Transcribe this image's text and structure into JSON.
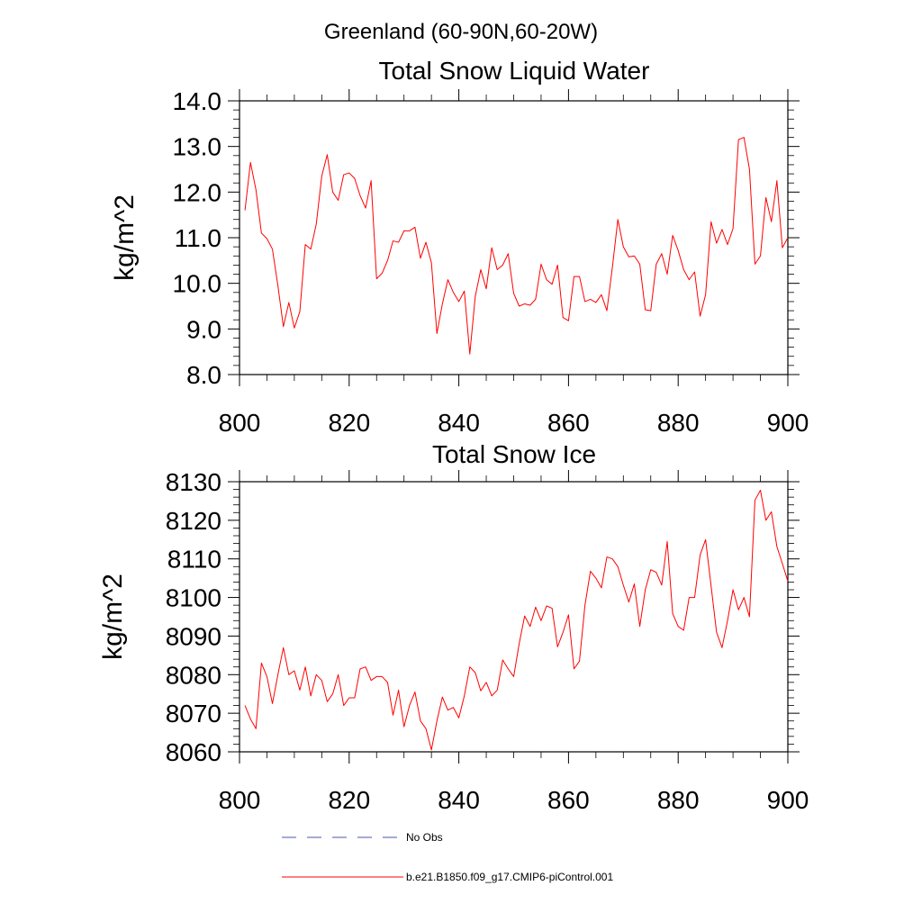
{
  "figure_title": "Greenland (60-90N,60-20W)",
  "colors": {
    "series": "#ff0000",
    "obs": "#4a5aa8",
    "axis": "#000000"
  },
  "chart_data": [
    {
      "type": "line",
      "title": "Total Snow Liquid Water",
      "xlabel": "",
      "ylabel": "kg/m^2",
      "xlim": [
        800,
        900
      ],
      "ylim": [
        8.0,
        14.0
      ],
      "xticks": [
        800,
        820,
        840,
        860,
        880,
        900
      ],
      "xtick_labels": [
        "800",
        "820",
        "840",
        "860",
        "880",
        "900"
      ],
      "yticks": [
        8.0,
        9.0,
        10.0,
        11.0,
        12.0,
        13.0,
        14.0
      ],
      "ytick_labels": [
        "8.0",
        "9.0",
        "10.0",
        "11.0",
        "12.0",
        "13.0",
        "14.0"
      ],
      "series": [
        {
          "name": "b.e21.B1850.f09_g17.CMIP6-piControl.001",
          "x": [
            801,
            802,
            803,
            804,
            805,
            806,
            807,
            808,
            809,
            810,
            811,
            812,
            813,
            814,
            815,
            816,
            817,
            818,
            819,
            820,
            821,
            822,
            823,
            824,
            825,
            826,
            827,
            828,
            829,
            830,
            831,
            832,
            833,
            834,
            835,
            836,
            837,
            838,
            839,
            840,
            841,
            842,
            843,
            844,
            845,
            846,
            847,
            848,
            849,
            850,
            851,
            852,
            853,
            854,
            855,
            856,
            857,
            858,
            859,
            860,
            861,
            862,
            863,
            864,
            865,
            866,
            867,
            868,
            869,
            870,
            871,
            872,
            873,
            874,
            875,
            876,
            877,
            878,
            879,
            880,
            881,
            882,
            883,
            884,
            885,
            886,
            887,
            888,
            889,
            890,
            891,
            892,
            893,
            894,
            895,
            896,
            897,
            898,
            899,
            900
          ],
          "values": [
            11.6,
            12.65,
            12.05,
            11.1,
            10.98,
            10.75,
            9.95,
            9.05,
            9.58,
            9.02,
            9.38,
            10.85,
            10.75,
            11.3,
            12.35,
            12.82,
            12.0,
            11.82,
            12.38,
            12.42,
            12.3,
            11.92,
            11.65,
            12.25,
            10.1,
            10.22,
            10.5,
            10.93,
            10.9,
            11.15,
            11.15,
            11.23,
            10.55,
            10.9,
            10.45,
            8.9,
            9.55,
            10.08,
            9.8,
            9.6,
            9.83,
            8.45,
            9.72,
            10.3,
            9.88,
            10.78,
            10.3,
            10.4,
            10.65,
            9.78,
            9.5,
            9.55,
            9.52,
            9.65,
            10.42,
            10.08,
            9.98,
            10.4,
            9.25,
            9.18,
            10.15,
            10.15,
            9.6,
            9.65,
            9.58,
            9.75,
            9.4,
            10.35,
            11.4,
            10.8,
            10.58,
            10.6,
            10.42,
            9.42,
            9.4,
            10.42,
            10.65,
            10.2,
            11.05,
            10.72,
            10.3,
            10.08,
            10.25,
            9.28,
            9.75,
            11.35,
            10.88,
            11.18,
            10.85,
            11.2,
            13.15,
            13.2,
            12.5,
            10.42,
            10.6,
            11.88,
            11.35,
            12.25,
            10.78,
            11.0
          ]
        }
      ]
    },
    {
      "type": "line",
      "title": "Total Snow Ice",
      "xlabel": "",
      "ylabel": "kg/m^2",
      "xlim": [
        800,
        900
      ],
      "ylim": [
        8060,
        8130
      ],
      "xticks": [
        800,
        820,
        840,
        860,
        880,
        900
      ],
      "xtick_labels": [
        "800",
        "820",
        "840",
        "860",
        "880",
        "900"
      ],
      "yticks": [
        8060,
        8070,
        8080,
        8090,
        8100,
        8110,
        8120,
        8130
      ],
      "ytick_labels": [
        "8060",
        "8070",
        "8080",
        "8090",
        "8100",
        "8110",
        "8120",
        "8130"
      ],
      "series": [
        {
          "name": "b.e21.B1850.f09_g17.CMIP6-piControl.001",
          "x": [
            801,
            802,
            803,
            804,
            805,
            806,
            807,
            808,
            809,
            810,
            811,
            812,
            813,
            814,
            815,
            816,
            817,
            818,
            819,
            820,
            821,
            822,
            823,
            824,
            825,
            826,
            827,
            828,
            829,
            830,
            831,
            832,
            833,
            834,
            835,
            836,
            837,
            838,
            839,
            840,
            841,
            842,
            843,
            844,
            845,
            846,
            847,
            848,
            849,
            850,
            851,
            852,
            853,
            854,
            855,
            856,
            857,
            858,
            859,
            860,
            861,
            862,
            863,
            864,
            865,
            866,
            867,
            868,
            869,
            870,
            871,
            872,
            873,
            874,
            875,
            876,
            877,
            878,
            879,
            880,
            881,
            882,
            883,
            884,
            885,
            886,
            887,
            888,
            889,
            890,
            891,
            892,
            893,
            894,
            895,
            896,
            897,
            898,
            899,
            900
          ],
          "values": [
            8072,
            8068.5,
            8066,
            8083,
            8079.5,
            8072.5,
            8080,
            8087,
            8080,
            8081,
            8076,
            8082,
            8074.5,
            8080,
            8078.5,
            8073,
            8075,
            8080,
            8072,
            8074,
            8074,
            8081.5,
            8082,
            8078.5,
            8079.5,
            8079.5,
            8078,
            8069.5,
            8076,
            8066.5,
            8072,
            8075.5,
            8068,
            8066,
            8060.5,
            8068,
            8074.2,
            8070.8,
            8071.5,
            8068.8,
            8074.5,
            8082,
            8080.5,
            8075.8,
            8078,
            8074.5,
            8076,
            8083.8,
            8081.5,
            8079.5,
            8088,
            8095.2,
            8092.5,
            8097.5,
            8094,
            8097.8,
            8097.2,
            8087.2,
            8091,
            8095.5,
            8081.5,
            8083.5,
            8098,
            8106.8,
            8105,
            8102.5,
            8110.5,
            8110,
            8108,
            8103.2,
            8098.8,
            8103.5,
            8092.5,
            8102,
            8107.2,
            8106.5,
            8103.2,
            8114.5,
            8095.8,
            8092.5,
            8091.5,
            8100,
            8100,
            8111,
            8115,
            8103,
            8091,
            8087,
            8094,
            8102,
            8096.8,
            8100,
            8095,
            8125.2,
            8127.8,
            8120,
            8122.2,
            8113.2,
            8108.8,
            8104.2
          ]
        }
      ]
    }
  ],
  "legend": [
    {
      "label": "No Obs",
      "style": "dashed"
    },
    {
      "label": "b.e21.B1850.f09_g17.CMIP6-piControl.001",
      "style": "solid"
    }
  ]
}
